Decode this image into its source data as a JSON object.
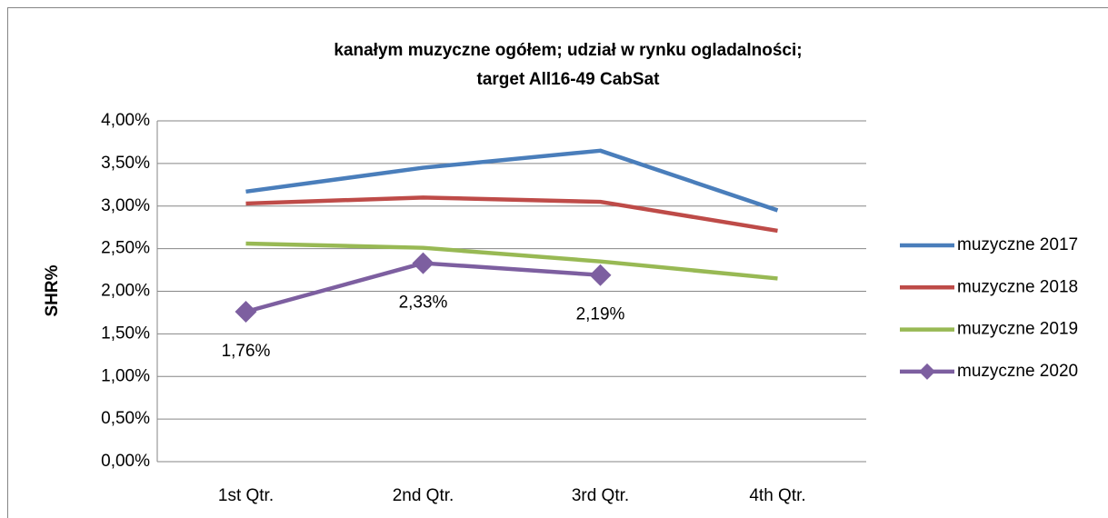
{
  "chart_data": {
    "type": "line",
    "title": [
      "kanałym muzyczne ogółem; udział w rynku ogladalności;",
      "target All16-49 CabSat"
    ],
    "y_label": "SHR%",
    "categories": [
      "1st Qtr.",
      "2nd Qtr.",
      "3rd Qtr.",
      "4th Qtr."
    ],
    "series": [
      {
        "name": "muzyczne 2017",
        "color": "#4a7ebb",
        "values": [
          3.17,
          3.45,
          3.65,
          2.95
        ]
      },
      {
        "name": "muzyczne 2018",
        "color": "#be4b48",
        "values": [
          3.03,
          3.1,
          3.05,
          2.71
        ]
      },
      {
        "name": "muzyczne 2019",
        "color": "#98b954",
        "values": [
          2.56,
          2.51,
          2.35,
          2.15
        ]
      },
      {
        "name": "muzyczne 2020",
        "color": "#7d5fa0",
        "marker": "diamond",
        "values": [
          1.76,
          2.33,
          2.19,
          null
        ],
        "value_labels": [
          "1,76%",
          "2,33%",
          "2,19%",
          null
        ]
      }
    ],
    "ylim": [
      0,
      4
    ],
    "yticks": [
      {
        "value": 0,
        "label": "0,00%"
      },
      {
        "value": 0.5,
        "label": "0,50%"
      },
      {
        "value": 1,
        "label": "1,00%"
      },
      {
        "value": 1.5,
        "label": "1,50%"
      },
      {
        "value": 2,
        "label": "2,00%"
      },
      {
        "value": 2.5,
        "label": "2,50%"
      },
      {
        "value": 3,
        "label": "3,00%"
      },
      {
        "value": 3.5,
        "label": "3,50%"
      },
      {
        "value": 4,
        "label": "4,00%"
      }
    ],
    "grid": true,
    "legend": "right"
  }
}
